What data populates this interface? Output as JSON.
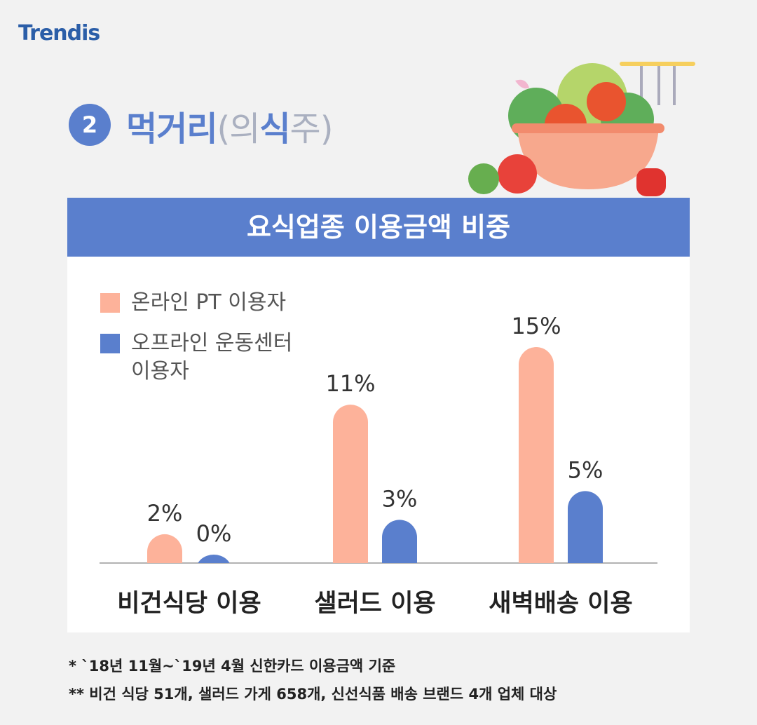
{
  "logo": "Trendis",
  "section_number": "2",
  "section_title": "먹거리",
  "section_subtitle_parts": [
    "(의",
    "식",
    "주)"
  ],
  "chart_data": {
    "type": "bar",
    "title": "요식업종 이용금액 비중",
    "categories": [
      "비건식당 이용",
      "샐러드 이용",
      "새벽배송 이용"
    ],
    "series": [
      {
        "name": "온라인 PT 이용자",
        "color": "#fdb29a",
        "values": [
          2,
          11,
          15
        ],
        "value_labels": [
          "2%",
          "11%",
          "15%"
        ]
      },
      {
        "name": "오프라인 운동센터 이용자",
        "color": "#5a7fcd",
        "values": [
          0,
          3,
          5
        ],
        "value_labels": [
          "0%",
          "3%",
          "5%"
        ]
      }
    ],
    "ylim": [
      0,
      15
    ],
    "legend": "top-left"
  },
  "footnotes": [
    "* `18년 11월~`19년 4월 신한카드 이용금액 기준",
    "** 비건 식당 51개, 샐러드 가게 658개, 신선식품 배송 브랜드 4개 업체 대상"
  ]
}
